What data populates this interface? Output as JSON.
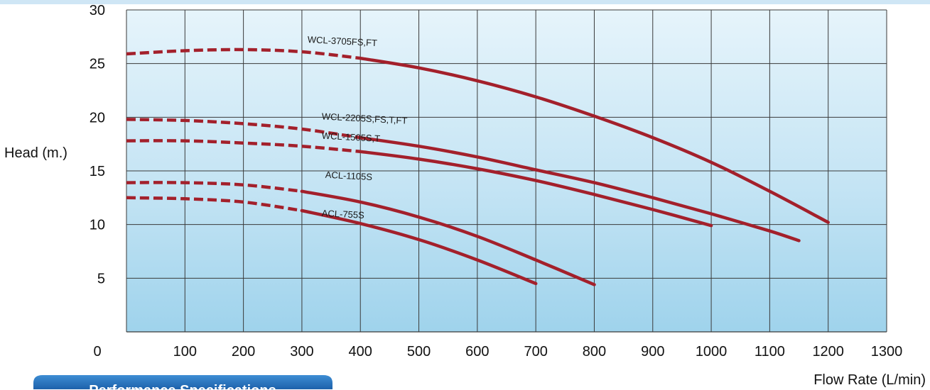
{
  "chart_data": {
    "type": "line",
    "xlabel": "Flow Rate (L/min)",
    "ylabel": "Head (m.)",
    "xlim": [
      0,
      1300
    ],
    "ylim": [
      0,
      30
    ],
    "x_ticks": [
      0,
      100,
      200,
      300,
      400,
      500,
      600,
      700,
      800,
      900,
      1000,
      1100,
      1200,
      1300
    ],
    "y_ticks": [
      5,
      10,
      15,
      20,
      25,
      30
    ],
    "y_zero_label": "0",
    "grid": true,
    "line_color": "#a3202b",
    "series": [
      {
        "name": "WCL-3705FS,FT",
        "dashed_until": 400,
        "points": [
          [
            0,
            25.9
          ],
          [
            100,
            26.2
          ],
          [
            200,
            26.3
          ],
          [
            300,
            26.1
          ],
          [
            400,
            25.5
          ],
          [
            500,
            24.6
          ],
          [
            600,
            23.4
          ],
          [
            700,
            21.9
          ],
          [
            800,
            20.1
          ],
          [
            900,
            18.1
          ],
          [
            1000,
            15.8
          ],
          [
            1100,
            13.1
          ],
          [
            1200,
            10.2
          ]
        ]
      },
      {
        "name": "WCL-2205S,FS,T,FT",
        "dashed_until": 400,
        "points": [
          [
            0,
            19.8
          ],
          [
            100,
            19.7
          ],
          [
            200,
            19.4
          ],
          [
            300,
            18.9
          ],
          [
            400,
            18.1
          ],
          [
            500,
            17.3
          ],
          [
            600,
            16.3
          ],
          [
            700,
            15.1
          ],
          [
            800,
            13.9
          ],
          [
            900,
            12.5
          ],
          [
            1000,
            11.0
          ],
          [
            1100,
            9.4
          ],
          [
            1150,
            8.5
          ]
        ]
      },
      {
        "name": "WCL-1505S,T",
        "dashed_until": 400,
        "points": [
          [
            0,
            17.8
          ],
          [
            100,
            17.8
          ],
          [
            200,
            17.6
          ],
          [
            300,
            17.3
          ],
          [
            400,
            16.8
          ],
          [
            500,
            16.1
          ],
          [
            600,
            15.2
          ],
          [
            700,
            14.1
          ],
          [
            800,
            12.8
          ],
          [
            900,
            11.4
          ],
          [
            1000,
            9.9
          ]
        ]
      },
      {
        "name": "ACL-1105S",
        "dashed_until": 300,
        "points": [
          [
            0,
            13.9
          ],
          [
            100,
            13.9
          ],
          [
            200,
            13.7
          ],
          [
            300,
            13.1
          ],
          [
            400,
            12.1
          ],
          [
            500,
            10.7
          ],
          [
            600,
            8.9
          ],
          [
            700,
            6.7
          ],
          [
            800,
            4.4
          ]
        ]
      },
      {
        "name": "ACL-755S",
        "dashed_until": 300,
        "points": [
          [
            0,
            12.5
          ],
          [
            100,
            12.4
          ],
          [
            200,
            12.1
          ],
          [
            300,
            11.3
          ],
          [
            400,
            10.1
          ],
          [
            500,
            8.6
          ],
          [
            600,
            6.7
          ],
          [
            700,
            4.5
          ]
        ]
      }
    ]
  },
  "badge": {
    "label": "Performance Specifications"
  }
}
